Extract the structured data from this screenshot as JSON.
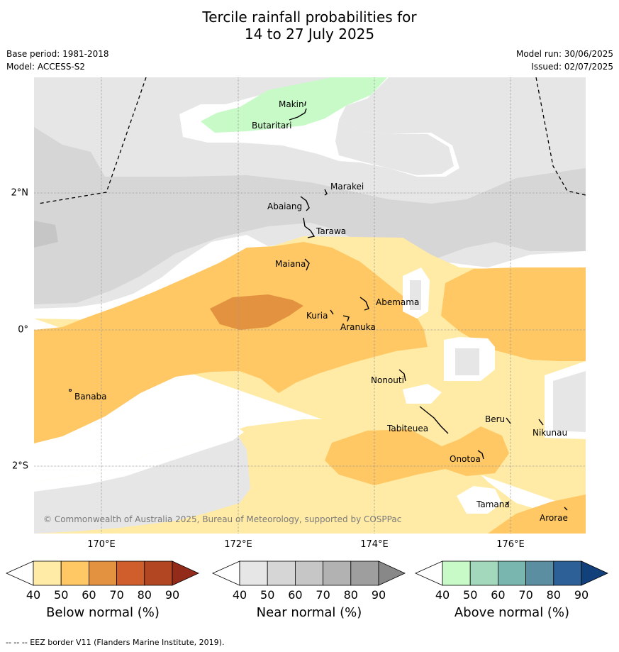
{
  "title_line1": "Tercile rainfall probabilities for",
  "title_line2": "14 to 27 July 2025",
  "base_period": "Base period: 1981-2018",
  "model": "Model: ACCESS-S2",
  "model_run": "Model run: 30/06/2025",
  "issued": "Issued: 02/07/2025",
  "copyright": "© Commonwealth of Australia 2025, Bureau of Meteorology, supported by COSPPac",
  "lat_labels": [
    "2°N",
    "0°",
    "2°S"
  ],
  "lon_labels": [
    "170°E",
    "172°E",
    "174°E",
    "176°E"
  ],
  "places": [
    "Makin",
    "Butaritari",
    "Marakei",
    "Abaiang",
    "Tarawa",
    "Maiana",
    "Abemama",
    "Kuria",
    "Aranuka",
    "Banaba",
    "Nonouti",
    "Tabiteuea",
    "Beru",
    "Nikunau",
    "Onotoa",
    "Tamana",
    "Arorae"
  ],
  "colorbars": [
    {
      "name": "Below normal (%)",
      "colors": [
        "#ffeba5",
        "#ffc864",
        "#e39340",
        "#cf5e2c",
        "#b24522",
        "#922b1a"
      ]
    },
    {
      "name": "Near normal (%)",
      "colors": [
        "#e6e6e6",
        "#d6d6d6",
        "#c6c6c6",
        "#b2b2b2",
        "#9e9e9e",
        "#888888"
      ]
    },
    {
      "name": "Above normal (%)",
      "colors": [
        "#c8fac8",
        "#a4d8bc",
        "#7ab6b0",
        "#5a8ea0",
        "#2e6098",
        "#12407a"
      ]
    }
  ],
  "ticks": [
    "40",
    "50",
    "60",
    "70",
    "80",
    "90"
  ],
  "footnote": "--  --  -- EEZ border V11 (Flanders Marine Institute, 2019)."
}
